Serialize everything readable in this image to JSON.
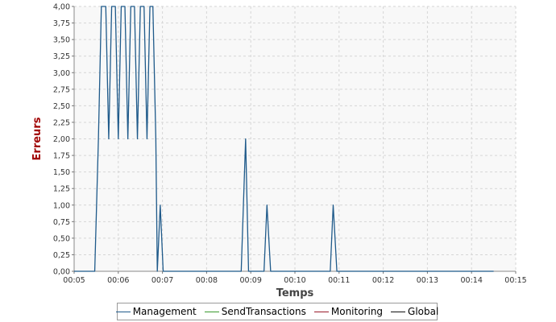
{
  "chart_data": {
    "type": "line",
    "title": "",
    "xlabel": "Temps",
    "ylabel": "Erreurs",
    "xlim": [
      "00:05",
      "00:15"
    ],
    "ylim": [
      0,
      4
    ],
    "x_tick_labels": [
      "00:05",
      "00:06",
      "00:07",
      "00:08",
      "00:09",
      "00:10",
      "00:11",
      "00:12",
      "00:13",
      "00:14",
      "00:15"
    ],
    "y_tick_labels": [
      "0,00",
      "0,25",
      "0,50",
      "0,75",
      "1,00",
      "1,25",
      "1,50",
      "1,75",
      "2,00",
      "2,25",
      "2,50",
      "2,75",
      "3,00",
      "3,25",
      "3,50",
      "3,75",
      "4,00"
    ],
    "grid": true,
    "legend_position": "bottom",
    "series": [
      {
        "name": "Management",
        "color": "#1f5a8a",
        "points": [
          [
            "00:05:00",
            0
          ],
          [
            "00:05:28",
            0
          ],
          [
            "00:05:33",
            2
          ],
          [
            "00:05:37",
            4
          ],
          [
            "00:05:43",
            4
          ],
          [
            "00:05:47",
            2
          ],
          [
            "00:05:51",
            4
          ],
          [
            "00:05:56",
            4
          ],
          [
            "00:06:00",
            2
          ],
          [
            "00:06:04",
            4
          ],
          [
            "00:06:09",
            4
          ],
          [
            "00:06:13",
            2
          ],
          [
            "00:06:17",
            4
          ],
          [
            "00:06:22",
            4
          ],
          [
            "00:06:26",
            2
          ],
          [
            "00:06:30",
            4
          ],
          [
            "00:06:35",
            4
          ],
          [
            "00:06:39",
            2
          ],
          [
            "00:06:43",
            4
          ],
          [
            "00:06:47",
            4
          ],
          [
            "00:06:51",
            2
          ],
          [
            "00:06:53",
            0
          ],
          [
            "00:06:57",
            1
          ],
          [
            "00:07:01",
            0
          ],
          [
            "00:08:47",
            0
          ],
          [
            "00:08:50",
            1
          ],
          [
            "00:08:53",
            2
          ],
          [
            "00:08:57",
            0
          ],
          [
            "00:09:18",
            0
          ],
          [
            "00:09:22",
            1
          ],
          [
            "00:09:27",
            0
          ],
          [
            "00:10:48",
            0
          ],
          [
            "00:10:52",
            1
          ],
          [
            "00:10:57",
            0
          ],
          [
            "00:14:30",
            0
          ]
        ]
      },
      {
        "name": "SendTransactions",
        "color": "#3a9a2e",
        "points": []
      },
      {
        "name": "Monitoring",
        "color": "#9a1a2a",
        "points": []
      },
      {
        "name": "Global",
        "color": "#111111",
        "points": []
      }
    ]
  }
}
